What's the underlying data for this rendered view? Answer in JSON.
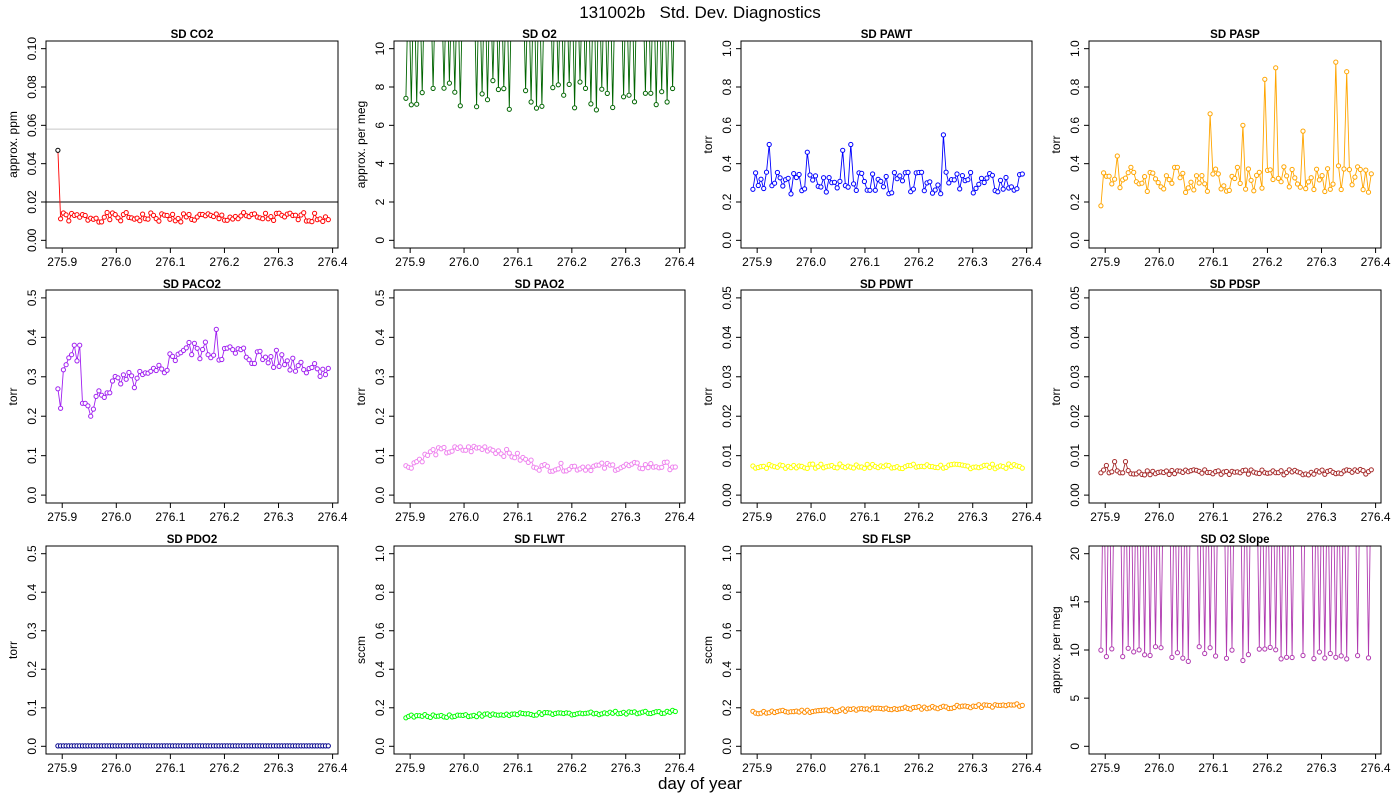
{
  "title": "131002b   Std. Dev. Diagnostics",
  "xlabel": "day of year",
  "chart_data": [
    {
      "type": "line",
      "title": "SD CO2",
      "ylabel": "approx. ppm",
      "color": "#ff0000",
      "xlim": [
        275.89,
        276.39
      ],
      "ylim": [
        0,
        0.1
      ],
      "yticks": [
        0,
        0.02,
        0.04,
        0.06,
        0.08,
        0.1
      ],
      "yticklabels": [
        "0.00",
        "0.02",
        "0.04",
        "0.06",
        "0.08",
        "0.10"
      ],
      "xticks": [
        275.9,
        276.0,
        276.1,
        276.2,
        276.3,
        276.4
      ],
      "xticklabels": [
        "275.9",
        "276.0",
        "276.1",
        "276.2",
        "276.3",
        "276.4"
      ],
      "hlines": [
        {
          "y": 0.02,
          "color": "#000000"
        },
        {
          "y": 0.058,
          "color": "#c8c8c8"
        }
      ],
      "first_point_color": "#000000",
      "seed": 1,
      "base": 0.012,
      "noise": 0.0025,
      "first": 0.047
    },
    {
      "type": "line",
      "title": "SD O2",
      "ylabel": "approx. per meg",
      "color": "#006400",
      "xlim": [
        275.89,
        276.39
      ],
      "ylim": [
        0,
        10
      ],
      "yticks": [
        0,
        2,
        4,
        6,
        8,
        10
      ],
      "yticklabels": [
        "0",
        "2",
        "4",
        "6",
        "8",
        "10"
      ],
      "xticks": [
        275.9,
        276.0,
        276.1,
        276.2,
        276.3,
        276.4
      ],
      "xticklabels": [
        "275.9",
        "276.0",
        "276.1",
        "276.2",
        "276.3",
        "276.4"
      ],
      "hlines": [],
      "seed": 2,
      "base": 7.6,
      "noise": 0.8,
      "spikes": "alternate",
      "spikeval": 14
    },
    {
      "type": "line",
      "title": "SD PAWT",
      "ylabel": "torr",
      "color": "#0000ff",
      "xlim": [
        275.89,
        276.39
      ],
      "ylim": [
        0,
        1
      ],
      "yticks": [
        0,
        0.2,
        0.4,
        0.6,
        0.8,
        1
      ],
      "yticklabels": [
        "0.0",
        "0.2",
        "0.4",
        "0.6",
        "0.8",
        "1.0"
      ],
      "xticks": [
        275.9,
        276.0,
        276.1,
        276.2,
        276.3,
        276.4
      ],
      "xticklabels": [
        "275.9",
        "276.0",
        "276.1",
        "276.2",
        "276.3",
        "276.4"
      ],
      "hlines": [],
      "seed": 3,
      "base": 0.3,
      "noise": 0.06,
      "peaks": [
        [
          6,
          0.5
        ],
        [
          20,
          0.46
        ],
        [
          33,
          0.47
        ],
        [
          36,
          0.5
        ],
        [
          70,
          0.55
        ]
      ]
    },
    {
      "type": "line",
      "title": "SD PASP",
      "ylabel": "torr",
      "color": "#ffa500",
      "xlim": [
        275.89,
        276.39
      ],
      "ylim": [
        0,
        1
      ],
      "yticks": [
        0,
        0.2,
        0.4,
        0.6,
        0.8,
        1
      ],
      "yticklabels": [
        "0.0",
        "0.2",
        "0.4",
        "0.6",
        "0.8",
        "1.0"
      ],
      "xticks": [
        275.9,
        276.0,
        276.1,
        276.2,
        276.3,
        276.4
      ],
      "xticklabels": [
        "275.9",
        "276.0",
        "276.1",
        "276.2",
        "276.3",
        "276.4"
      ],
      "hlines": [],
      "seed": 4,
      "base": 0.32,
      "noise": 0.07,
      "peaks": [
        [
          0,
          0.18
        ],
        [
          6,
          0.44
        ],
        [
          40,
          0.66
        ],
        [
          52,
          0.6
        ],
        [
          60,
          0.84
        ],
        [
          64,
          0.9
        ],
        [
          74,
          0.57
        ],
        [
          86,
          0.93
        ],
        [
          90,
          0.88
        ]
      ]
    },
    {
      "type": "line",
      "title": "SD PACO2",
      "ylabel": "torr",
      "color": "#a020f0",
      "xlim": [
        275.89,
        276.39
      ],
      "ylim": [
        0,
        0.5
      ],
      "yticks": [
        0,
        0.1,
        0.2,
        0.3,
        0.4,
        0.5
      ],
      "yticklabels": [
        "0.0",
        "0.1",
        "0.2",
        "0.3",
        "0.4",
        "0.5"
      ],
      "xticks": [
        275.9,
        276.0,
        276.1,
        276.2,
        276.3,
        276.4
      ],
      "xticklabels": [
        "275.9",
        "276.0",
        "276.1",
        "276.2",
        "276.3",
        "276.4"
      ],
      "hlines": [],
      "seed": 5,
      "trend": [
        [
          0,
          0.25
        ],
        [
          5,
          0.38
        ],
        [
          10,
          0.22
        ],
        [
          20,
          0.28
        ],
        [
          35,
          0.3
        ],
        [
          45,
          0.37
        ],
        [
          65,
          0.36
        ],
        [
          100,
          0.32
        ]
      ],
      "noise": 0.025,
      "peaks": [
        [
          1,
          0.22
        ],
        [
          6,
          0.38
        ],
        [
          8,
          0.38
        ],
        [
          12,
          0.2
        ],
        [
          58,
          0.42
        ]
      ]
    },
    {
      "type": "line",
      "title": "SD PAO2",
      "ylabel": "torr",
      "color": "#ee82ee",
      "xlim": [
        275.89,
        276.39
      ],
      "ylim": [
        0,
        0.5
      ],
      "yticks": [
        0,
        0.1,
        0.2,
        0.3,
        0.4,
        0.5
      ],
      "yticklabels": [
        "0.0",
        "0.1",
        "0.2",
        "0.3",
        "0.4",
        "0.5"
      ],
      "xticks": [
        275.9,
        276.0,
        276.1,
        276.2,
        276.3,
        276.4
      ],
      "xticklabels": [
        "275.9",
        "276.0",
        "276.1",
        "276.2",
        "276.3",
        "276.4"
      ],
      "hlines": [],
      "seed": 6,
      "trend": [
        [
          0,
          0.07
        ],
        [
          10,
          0.11
        ],
        [
          30,
          0.12
        ],
        [
          40,
          0.1
        ],
        [
          50,
          0.07
        ],
        [
          100,
          0.075
        ]
      ],
      "noise": 0.01
    },
    {
      "type": "line",
      "title": "SD PDWT",
      "ylabel": "torr",
      "color": "#ffff00",
      "xlim": [
        275.89,
        276.39
      ],
      "ylim": [
        0,
        0.05
      ],
      "yticks": [
        0,
        0.01,
        0.02,
        0.03,
        0.04,
        0.05
      ],
      "yticklabels": [
        "0.00",
        "0.01",
        "0.02",
        "0.03",
        "0.04",
        "0.05"
      ],
      "xticks": [
        275.9,
        276.0,
        276.1,
        276.2,
        276.3,
        276.4
      ],
      "xticklabels": [
        "275.9",
        "276.0",
        "276.1",
        "276.2",
        "276.3",
        "276.4"
      ],
      "hlines": [],
      "seed": 7,
      "base": 0.0073,
      "noise": 0.0006
    },
    {
      "type": "line",
      "title": "SD PDSP",
      "ylabel": "torr",
      "color": "#a52a2a",
      "xlim": [
        275.89,
        276.39
      ],
      "ylim": [
        0,
        0.05
      ],
      "yticks": [
        0,
        0.01,
        0.02,
        0.03,
        0.04,
        0.05
      ],
      "yticklabels": [
        "0.00",
        "0.01",
        "0.02",
        "0.03",
        "0.04",
        "0.05"
      ],
      "xticks": [
        275.9,
        276.0,
        276.1,
        276.2,
        276.3,
        276.4
      ],
      "xticklabels": [
        "275.9",
        "276.0",
        "276.1",
        "276.2",
        "276.3",
        "276.4"
      ],
      "hlines": [],
      "seed": 8,
      "base": 0.0058,
      "noise": 0.0007,
      "peaks": [
        [
          2,
          0.0075
        ],
        [
          5,
          0.0085
        ],
        [
          9,
          0.0085
        ]
      ]
    },
    {
      "type": "line",
      "title": "SD PDO2",
      "ylabel": "torr",
      "color": "#00008b",
      "xlim": [
        275.89,
        276.39
      ],
      "ylim": [
        0,
        0.5
      ],
      "yticks": [
        0,
        0.1,
        0.2,
        0.3,
        0.4,
        0.5
      ],
      "yticklabels": [
        "0.0",
        "0.1",
        "0.2",
        "0.3",
        "0.4",
        "0.5"
      ],
      "xticks": [
        275.9,
        276.0,
        276.1,
        276.2,
        276.3,
        276.4
      ],
      "xticklabels": [
        "275.9",
        "276.0",
        "276.1",
        "276.2",
        "276.3",
        "276.4"
      ],
      "hlines": [],
      "seed": 9,
      "base": 0.001,
      "noise": 0
    },
    {
      "type": "line",
      "title": "SD FLWT",
      "ylabel": "sccm",
      "color": "#00ff00",
      "xlim": [
        275.89,
        276.39
      ],
      "ylim": [
        0,
        1
      ],
      "yticks": [
        0,
        0.2,
        0.4,
        0.6,
        0.8,
        1
      ],
      "yticklabels": [
        "0.0",
        "0.2",
        "0.4",
        "0.6",
        "0.8",
        "1.0"
      ],
      "xticks": [
        275.9,
        276.0,
        276.1,
        276.2,
        276.3,
        276.4
      ],
      "xticklabels": [
        "275.9",
        "276.0",
        "276.1",
        "276.2",
        "276.3",
        "276.4"
      ],
      "hlines": [],
      "seed": 10,
      "trend": [
        [
          0,
          0.155
        ],
        [
          100,
          0.18
        ]
      ],
      "noise": 0.008
    },
    {
      "type": "line",
      "title": "SD FLSP",
      "ylabel": "sccm",
      "color": "#ff8c00",
      "xlim": [
        275.89,
        276.39
      ],
      "ylim": [
        0,
        1
      ],
      "yticks": [
        0,
        0.2,
        0.4,
        0.6,
        0.8,
        1
      ],
      "yticklabels": [
        "0.0",
        "0.2",
        "0.4",
        "0.6",
        "0.8",
        "1.0"
      ],
      "xticks": [
        275.9,
        276.0,
        276.1,
        276.2,
        276.3,
        276.4
      ],
      "xticklabels": [
        "275.9",
        "276.0",
        "276.1",
        "276.2",
        "276.3",
        "276.4"
      ],
      "hlines": [],
      "seed": 11,
      "trend": [
        [
          0,
          0.175
        ],
        [
          100,
          0.215
        ]
      ],
      "noise": 0.008
    },
    {
      "type": "line",
      "title": "SD O2 Slope",
      "ylabel": "approx. per meg",
      "color": "#b03ab0",
      "xlim": [
        275.89,
        276.39
      ],
      "ylim": [
        0,
        20
      ],
      "yticks": [
        0,
        5,
        10,
        15,
        20
      ],
      "yticklabels": [
        "0",
        "5",
        "10",
        "15",
        "20"
      ],
      "xticks": [
        275.9,
        276.0,
        276.1,
        276.2,
        276.3,
        276.4
      ],
      "xticklabels": [
        "275.9",
        "276.0",
        "276.1",
        "276.2",
        "276.3",
        "276.4"
      ],
      "hlines": [],
      "seed": 12,
      "base": 9.6,
      "noise": 0.8,
      "spikes": "alternate",
      "spikeval": 30
    }
  ]
}
